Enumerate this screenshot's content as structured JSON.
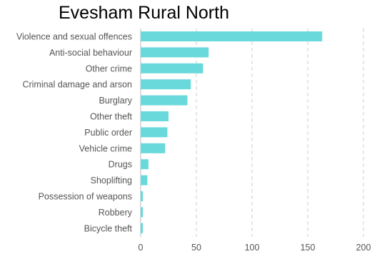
{
  "chart_data": {
    "type": "bar",
    "orientation": "horizontal",
    "title": "Evesham Rural North",
    "categories": [
      "Violence and sexual offences",
      "Anti-social behaviour",
      "Other crime",
      "Criminal damage and arson",
      "Burglary",
      "Other theft",
      "Public order",
      "Vehicle crime",
      "Drugs",
      "Shoplifting",
      "Possession of weapons",
      "Robbery",
      "Bicycle theft"
    ],
    "values": [
      163,
      61,
      56,
      45,
      42,
      25,
      24,
      22,
      7,
      6,
      2,
      2,
      2
    ],
    "xlim": [
      0,
      200
    ],
    "xticks": [
      "0",
      "50",
      "100",
      "150",
      "200"
    ],
    "xlabel": "",
    "ylabel": "",
    "grid": "vertical dashed",
    "legend": "none",
    "bar_color": "#6ad9db"
  }
}
